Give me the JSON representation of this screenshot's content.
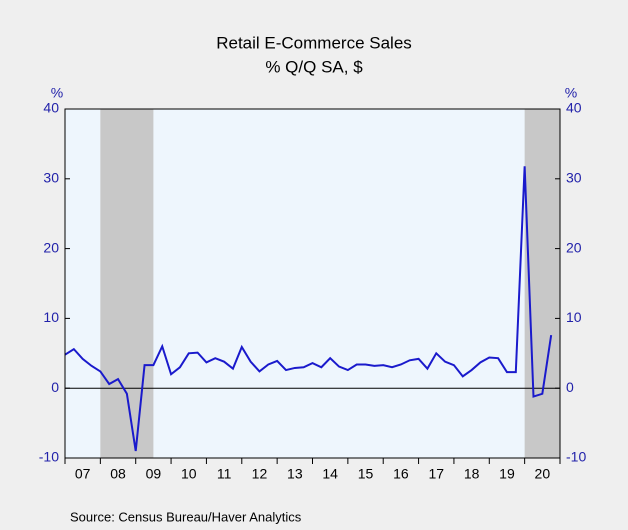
{
  "chart_data": {
    "type": "line",
    "title": "Retail E-Commerce Sales",
    "subtitle": "% Q/Q   SA, $",
    "y_unit_left": "%",
    "y_unit_right": "%",
    "source": "Source:  Census Bureau/Haver Analytics",
    "x": [
      2007,
      2007.25,
      2007.5,
      2007.75,
      2008,
      2008.25,
      2008.5,
      2008.75,
      2009,
      2009.25,
      2009.5,
      2009.75,
      2010,
      2010.25,
      2010.5,
      2010.75,
      2011,
      2011.25,
      2011.5,
      2011.75,
      2012,
      2012.25,
      2012.5,
      2012.75,
      2013,
      2013.25,
      2013.5,
      2013.75,
      2014,
      2014.25,
      2014.5,
      2014.75,
      2015,
      2015.25,
      2015.5,
      2015.75,
      2016,
      2016.25,
      2016.5,
      2016.75,
      2017,
      2017.25,
      2017.5,
      2017.75,
      2018,
      2018.25,
      2018.5,
      2018.75,
      2019,
      2019.25,
      2019.5,
      2019.75,
      2020,
      2020.25,
      2020.5,
      2020.75
    ],
    "series": [
      {
        "name": "Retail E-Commerce Sales",
        "color": "#1a1acc",
        "values": [
          4.8,
          5.6,
          4.2,
          3.2,
          2.4,
          0.6,
          1.3,
          -0.8,
          -9.0,
          3.3,
          3.3,
          6.0,
          2.0,
          3.0,
          5.0,
          5.1,
          3.7,
          4.3,
          3.8,
          2.8,
          5.9,
          3.8,
          2.4,
          3.4,
          3.9,
          2.6,
          2.9,
          3.0,
          3.6,
          3.0,
          4.3,
          3.1,
          2.6,
          3.4,
          3.4,
          3.2,
          3.3,
          3.0,
          3.4,
          4.0,
          4.2,
          2.8,
          5.0,
          3.8,
          3.3,
          1.7,
          2.6,
          3.7,
          4.4,
          4.3,
          2.3,
          2.3,
          31.8,
          -1.2,
          -0.8,
          7.6
        ]
      }
    ],
    "xlim": [
      2007,
      2021
    ],
    "xticks": [
      2007,
      2008,
      2009,
      2010,
      2011,
      2012,
      2013,
      2014,
      2015,
      2016,
      2017,
      2018,
      2019,
      2020,
      2021
    ],
    "year_labels": [
      {
        "value": 2007.5,
        "label": "07"
      },
      {
        "value": 2008.5,
        "label": "08"
      },
      {
        "value": 2009.5,
        "label": "09"
      },
      {
        "value": 2010.5,
        "label": "10"
      },
      {
        "value": 2011.5,
        "label": "11"
      },
      {
        "value": 2012.5,
        "label": "12"
      },
      {
        "value": 2013.5,
        "label": "13"
      },
      {
        "value": 2014.5,
        "label": "14"
      },
      {
        "value": 2015.5,
        "label": "15"
      },
      {
        "value": 2016.5,
        "label": "16"
      },
      {
        "value": 2017.5,
        "label": "17"
      },
      {
        "value": 2018.5,
        "label": "18"
      },
      {
        "value": 2019.5,
        "label": "19"
      },
      {
        "value": 2020.5,
        "label": "20"
      }
    ],
    "ylim": [
      -10,
      40
    ],
    "yticks": [
      -10,
      0,
      10,
      20,
      30,
      40
    ],
    "y2lim": [
      -10,
      40
    ],
    "y2ticks": [
      -10,
      0,
      10,
      20,
      30,
      40
    ],
    "recessions": [
      [
        2008,
        2009.5
      ],
      [
        2020,
        2021
      ]
    ],
    "recession_color": "#c8c8c8",
    "plot_background": "#eef6fd"
  }
}
